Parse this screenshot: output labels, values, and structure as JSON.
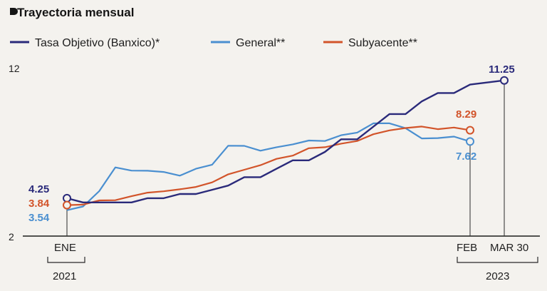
{
  "title": "Trayectoria mensual",
  "legend": [
    {
      "label": "Tasa Objetivo (Banxico)*",
      "color": "#2a2a7a"
    },
    {
      "label": "General**",
      "color": "#4a8fd0"
    },
    {
      "label": "Subyacente**",
      "color": "#d2542a"
    }
  ],
  "chart_data": {
    "type": "line",
    "ylim": [
      2,
      12
    ],
    "y_ticks": [
      "2",
      "12"
    ],
    "x_tick_labels": [
      "ENE",
      "FEB",
      "MAR 30"
    ],
    "year_labels": [
      "2021",
      "2023"
    ],
    "series": [
      {
        "name": "Tasa Objetivo (Banxico)*",
        "color": "#2a2a7a",
        "x": [
          "2021-01",
          "2021-02",
          "2021-03",
          "2021-04",
          "2021-05",
          "2021-06",
          "2021-07",
          "2021-08",
          "2021-09",
          "2021-10",
          "2021-11",
          "2021-12",
          "2022-01",
          "2022-02",
          "2022-03",
          "2022-04",
          "2022-05",
          "2022-06",
          "2022-07",
          "2022-08",
          "2022-09",
          "2022-10",
          "2022-11",
          "2022-12",
          "2023-01",
          "2023-02",
          "2023-03-30"
        ],
        "values": [
          4.25,
          4.0,
          4.0,
          4.0,
          4.0,
          4.25,
          4.25,
          4.5,
          4.5,
          4.75,
          5.0,
          5.5,
          5.5,
          6.0,
          6.5,
          6.5,
          7.0,
          7.75,
          7.75,
          8.5,
          9.25,
          9.25,
          10.0,
          10.5,
          10.5,
          11.0,
          11.25
        ]
      },
      {
        "name": "General**",
        "color": "#4a8fd0",
        "x": [
          "2021-01",
          "2021-02",
          "2021-03",
          "2021-04",
          "2021-05",
          "2021-06",
          "2021-07",
          "2021-08",
          "2021-09",
          "2021-10",
          "2021-11",
          "2021-12",
          "2022-01",
          "2022-02",
          "2022-03",
          "2022-04",
          "2022-05",
          "2022-06",
          "2022-07",
          "2022-08",
          "2022-09",
          "2022-10",
          "2022-11",
          "2022-12",
          "2023-01",
          "2023-02"
        ],
        "values": [
          3.54,
          3.76,
          4.67,
          6.08,
          5.89,
          5.88,
          5.81,
          5.59,
          6.0,
          6.24,
          7.37,
          7.36,
          7.07,
          7.28,
          7.45,
          7.68,
          7.65,
          7.99,
          8.15,
          8.7,
          8.7,
          8.41,
          7.8,
          7.82,
          7.91,
          7.62
        ]
      },
      {
        "name": "Subyacente**",
        "color": "#d2542a",
        "x": [
          "2021-01",
          "2021-02",
          "2021-03",
          "2021-04",
          "2021-05",
          "2021-06",
          "2021-07",
          "2021-08",
          "2021-09",
          "2021-10",
          "2021-11",
          "2021-12",
          "2022-01",
          "2022-02",
          "2022-03",
          "2022-04",
          "2022-05",
          "2022-06",
          "2022-07",
          "2022-08",
          "2022-09",
          "2022-10",
          "2022-11",
          "2022-12",
          "2023-01",
          "2023-02"
        ],
        "values": [
          3.84,
          3.87,
          4.12,
          4.13,
          4.37,
          4.58,
          4.66,
          4.78,
          4.92,
          5.19,
          5.67,
          5.94,
          6.21,
          6.59,
          6.78,
          7.22,
          7.28,
          7.49,
          7.65,
          8.05,
          8.28,
          8.42,
          8.51,
          8.35,
          8.45,
          8.29
        ]
      }
    ],
    "endpoint_labels": [
      {
        "series": "Tasa Objetivo (Banxico)*",
        "start": "4.25",
        "end": "11.25"
      },
      {
        "series": "General**",
        "start": "3.54",
        "end": "7.62"
      },
      {
        "series": "Subyacente**",
        "start": "3.84",
        "end": "8.29"
      }
    ]
  }
}
